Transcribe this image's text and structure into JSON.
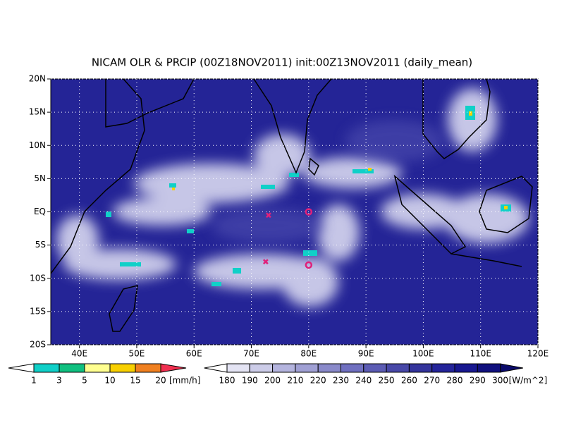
{
  "map": {
    "title": "NICAM OLR & PRCIP (00Z18NOV2011) init:00Z13NOV2011 (daily_mean)",
    "lonlim": [
      35,
      120
    ],
    "latlim": [
      -20,
      20
    ],
    "lonticks": [
      {
        "value": 40,
        "label": "40E"
      },
      {
        "value": 50,
        "label": "50E"
      },
      {
        "value": 60,
        "label": "60E"
      },
      {
        "value": 70,
        "label": "70E"
      },
      {
        "value": 80,
        "label": "80E"
      },
      {
        "value": 90,
        "label": "90E"
      },
      {
        "value": 100,
        "label": "100E"
      },
      {
        "value": 110,
        "label": "110E"
      },
      {
        "value": 120,
        "label": "120E"
      }
    ],
    "latticks": [
      {
        "value": -20,
        "label": "20S"
      },
      {
        "value": -15,
        "label": "15S"
      },
      {
        "value": -10,
        "label": "10S"
      },
      {
        "value": -5,
        "label": "5S"
      },
      {
        "value": 0,
        "label": "EQ"
      },
      {
        "value": 5,
        "label": "5N"
      },
      {
        "value": 10,
        "label": "10N"
      },
      {
        "value": 15,
        "label": "15N"
      },
      {
        "value": 20,
        "label": "20N"
      }
    ],
    "grid": true,
    "markers": [
      {
        "shape": "circle",
        "lon": 80,
        "lat": 0
      },
      {
        "shape": "circle",
        "lon": 80,
        "lat": -8
      },
      {
        "shape": "cross",
        "lon": 73,
        "lat": -0.5
      },
      {
        "shape": "cross",
        "lon": 72.5,
        "lat": -7.5
      }
    ],
    "marker_color": "#e0207a",
    "precip_colorbar": {
      "labels": [
        1,
        3,
        5,
        10,
        15,
        20
      ],
      "unit": "[mm/h]",
      "colors": [
        "#ffffff",
        "#10d0c8",
        "#10c080",
        "#ffff90",
        "#f8d000",
        "#f08020",
        "#f03050"
      ]
    },
    "olr_colorbar": {
      "labels": [
        180,
        190,
        200,
        210,
        220,
        230,
        240,
        250,
        260,
        270,
        280,
        290,
        300
      ],
      "unit": "[W/m^2]",
      "colors": [
        "#ffffff",
        "#e4e4f4",
        "#cccce8",
        "#b4b4de",
        "#a0a0d4",
        "#8a8aca",
        "#7070c0",
        "#5c5cb4",
        "#4848a8",
        "#34349c",
        "#24249a",
        "#181890",
        "#10107e",
        "#0a0a6a"
      ]
    }
  }
}
